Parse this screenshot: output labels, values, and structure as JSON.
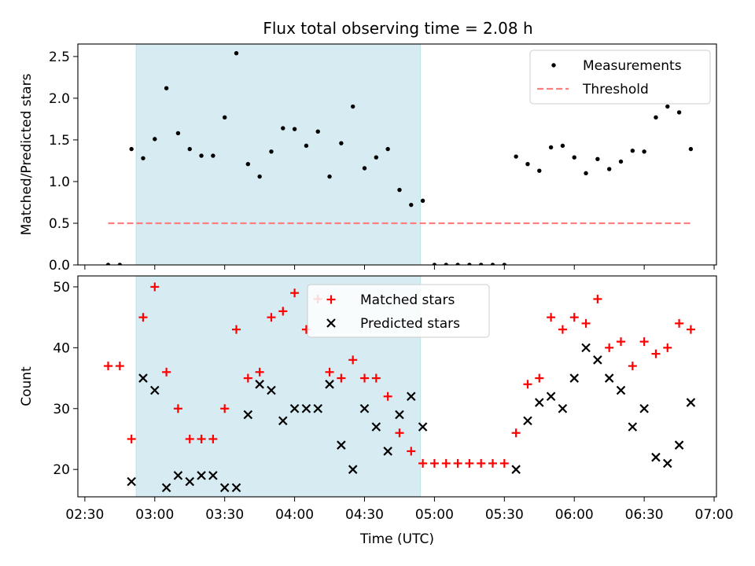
{
  "figure": {
    "title": "Flux total observing time = 2.08 h"
  },
  "chart_data": [
    {
      "type": "scatter",
      "ylabel": "Matched/Predicted stars",
      "xlabel": "",
      "xlim": [
        "02:27",
        "07:01"
      ],
      "ylim": [
        0,
        2.65
      ],
      "grid": false,
      "legend_position": "top-right",
      "shaded_interval": {
        "from": "02:52",
        "to": "04:54",
        "color": "#add8e6"
      },
      "yticks": [
        0.0,
        0.5,
        1.0,
        1.5,
        2.0,
        2.5
      ],
      "ytick_labels": [
        "0.0",
        "0.5",
        "1.0",
        "1.5",
        "2.0",
        "2.5"
      ],
      "series": [
        {
          "name": "Measurements",
          "color": "#000000",
          "marker": "dot",
          "points": [
            [
              "02:40",
              0.0
            ],
            [
              "02:45",
              0.0
            ],
            [
              "02:50",
              1.39
            ],
            [
              "02:55",
              1.28
            ],
            [
              "03:00",
              1.51
            ],
            [
              "03:05",
              2.12
            ],
            [
              "03:10",
              1.58
            ],
            [
              "03:15",
              1.39
            ],
            [
              "03:20",
              1.31
            ],
            [
              "03:25",
              1.31
            ],
            [
              "03:30",
              1.77
            ],
            [
              "03:35",
              2.54
            ],
            [
              "03:40",
              1.21
            ],
            [
              "03:45",
              1.06
            ],
            [
              "03:50",
              1.36
            ],
            [
              "03:55",
              1.64
            ],
            [
              "04:00",
              1.63
            ],
            [
              "04:05",
              1.43
            ],
            [
              "04:10",
              1.6
            ],
            [
              "04:15",
              1.06
            ],
            [
              "04:20",
              1.46
            ],
            [
              "04:25",
              1.9
            ],
            [
              "04:30",
              1.16
            ],
            [
              "04:35",
              1.29
            ],
            [
              "04:40",
              1.39
            ],
            [
              "04:45",
              0.9
            ],
            [
              "04:50",
              0.72
            ],
            [
              "04:55",
              0.77
            ],
            [
              "05:00",
              0.0
            ],
            [
              "05:05",
              0.0
            ],
            [
              "05:10",
              0.0
            ],
            [
              "05:15",
              0.0
            ],
            [
              "05:20",
              0.0
            ],
            [
              "05:25",
              0.0
            ],
            [
              "05:30",
              0.0
            ],
            [
              "05:35",
              1.3
            ],
            [
              "05:40",
              1.21
            ],
            [
              "05:45",
              1.13
            ],
            [
              "05:50",
              1.41
            ],
            [
              "05:55",
              1.43
            ],
            [
              "06:00",
              1.29
            ],
            [
              "06:05",
              1.1
            ],
            [
              "06:10",
              1.27
            ],
            [
              "06:15",
              1.15
            ],
            [
              "06:20",
              1.24
            ],
            [
              "06:25",
              1.37
            ],
            [
              "06:30",
              1.36
            ],
            [
              "06:35",
              1.77
            ],
            [
              "06:40",
              1.9
            ],
            [
              "06:45",
              1.83
            ],
            [
              "06:50",
              1.39
            ]
          ]
        },
        {
          "name": "Threshold",
          "color": "#ff7f7f",
          "style": "dashed-line",
          "points": [
            [
              "02:40",
              0.5
            ],
            [
              "06:50",
              0.5
            ]
          ]
        }
      ]
    },
    {
      "type": "scatter",
      "ylabel": "Count",
      "xlabel": "Time (UTC)",
      "xlim": [
        "02:27",
        "07:01"
      ],
      "ylim": [
        15.5,
        51.8
      ],
      "grid": false,
      "legend_position": "top-center",
      "shaded_interval": {
        "from": "02:52",
        "to": "04:54",
        "color": "#add8e6"
      },
      "yticks": [
        20,
        30,
        40,
        50
      ],
      "ytick_labels": [
        "20",
        "30",
        "40",
        "50"
      ],
      "xticks": [
        "02:30",
        "03:00",
        "03:30",
        "04:00",
        "04:30",
        "05:00",
        "05:30",
        "06:00",
        "06:30",
        "07:00"
      ],
      "xtick_labels": [
        "02:30",
        "03:00",
        "03:30",
        "04:00",
        "04:30",
        "05:00",
        "05:30",
        "06:00",
        "06:30",
        "07:00"
      ],
      "series": [
        {
          "name": "Matched stars",
          "color": "#ff0000",
          "marker": "plus",
          "points": [
            [
              "02:40",
              37
            ],
            [
              "02:45",
              37
            ],
            [
              "02:50",
              25
            ],
            [
              "02:55",
              45
            ],
            [
              "03:00",
              50
            ],
            [
              "03:05",
              36
            ],
            [
              "03:10",
              30
            ],
            [
              "03:15",
              25
            ],
            [
              "03:20",
              25
            ],
            [
              "03:25",
              25
            ],
            [
              "03:30",
              30
            ],
            [
              "03:35",
              43
            ],
            [
              "03:40",
              35
            ],
            [
              "03:45",
              36
            ],
            [
              "03:50",
              45
            ],
            [
              "03:55",
              46
            ],
            [
              "04:00",
              49
            ],
            [
              "04:05",
              43
            ],
            [
              "04:10",
              48
            ],
            [
              "04:15",
              36
            ],
            [
              "04:20",
              35
            ],
            [
              "04:25",
              38
            ],
            [
              "04:30",
              35
            ],
            [
              "04:35",
              35
            ],
            [
              "04:40",
              32
            ],
            [
              "04:45",
              26
            ],
            [
              "04:50",
              23
            ],
            [
              "04:55",
              21
            ],
            [
              "05:00",
              21
            ],
            [
              "05:05",
              21
            ],
            [
              "05:10",
              21
            ],
            [
              "05:15",
              21
            ],
            [
              "05:20",
              21
            ],
            [
              "05:25",
              21
            ],
            [
              "05:30",
              21
            ],
            [
              "05:35",
              26
            ],
            [
              "05:40",
              34
            ],
            [
              "05:45",
              35
            ],
            [
              "05:50",
              45
            ],
            [
              "05:55",
              43
            ],
            [
              "06:00",
              45
            ],
            [
              "06:05",
              44
            ],
            [
              "06:10",
              48
            ],
            [
              "06:15",
              40
            ],
            [
              "06:20",
              41
            ],
            [
              "06:25",
              37
            ],
            [
              "06:30",
              41
            ],
            [
              "06:35",
              39
            ],
            [
              "06:40",
              40
            ],
            [
              "06:45",
              44
            ],
            [
              "06:50",
              43
            ]
          ]
        },
        {
          "name": "Predicted stars",
          "color": "#000000",
          "marker": "x",
          "points": [
            [
              "02:50",
              18
            ],
            [
              "02:55",
              35
            ],
            [
              "03:00",
              33
            ],
            [
              "03:05",
              17
            ],
            [
              "03:10",
              19
            ],
            [
              "03:15",
              18
            ],
            [
              "03:20",
              19
            ],
            [
              "03:25",
              19
            ],
            [
              "03:30",
              17
            ],
            [
              "03:35",
              17
            ],
            [
              "03:40",
              29
            ],
            [
              "03:45",
              34
            ],
            [
              "03:50",
              33
            ],
            [
              "03:55",
              28
            ],
            [
              "04:00",
              30
            ],
            [
              "04:05",
              30
            ],
            [
              "04:10",
              30
            ],
            [
              "04:15",
              34
            ],
            [
              "04:20",
              24
            ],
            [
              "04:25",
              20
            ],
            [
              "04:30",
              30
            ],
            [
              "04:35",
              27
            ],
            [
              "04:40",
              23
            ],
            [
              "04:45",
              29
            ],
            [
              "04:50",
              32
            ],
            [
              "04:55",
              27
            ],
            [
              "05:35",
              20
            ],
            [
              "05:40",
              28
            ],
            [
              "05:45",
              31
            ],
            [
              "05:50",
              32
            ],
            [
              "05:55",
              30
            ],
            [
              "06:00",
              35
            ],
            [
              "06:05",
              40
            ],
            [
              "06:10",
              38
            ],
            [
              "06:15",
              35
            ],
            [
              "06:20",
              33
            ],
            [
              "06:25",
              27
            ],
            [
              "06:30",
              30
            ],
            [
              "06:35",
              22
            ],
            [
              "06:40",
              21
            ],
            [
              "06:45",
              24
            ],
            [
              "06:50",
              31
            ]
          ]
        }
      ]
    }
  ]
}
